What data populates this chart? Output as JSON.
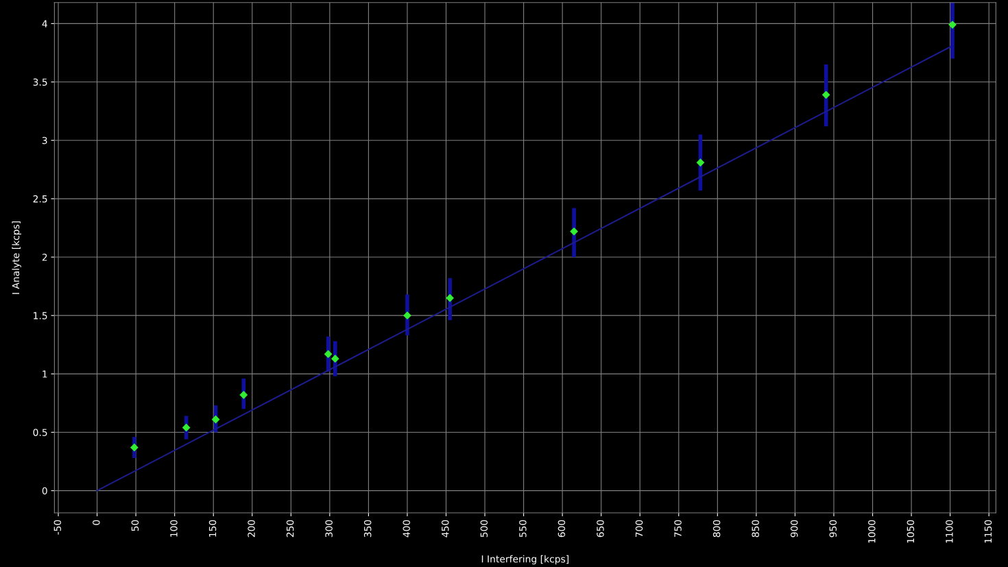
{
  "chart_data": {
    "type": "scatter",
    "xlabel": "I Interfering [kcps]",
    "ylabel": "I Analyte [kcps]",
    "xlim": [
      -55,
      1159
    ],
    "ylim": [
      -0.19,
      4.18
    ],
    "xticks": [
      -50,
      0,
      50,
      100,
      150,
      200,
      250,
      300,
      350,
      400,
      450,
      500,
      550,
      600,
      650,
      700,
      750,
      800,
      850,
      900,
      950,
      1000,
      1050,
      1100,
      1150
    ],
    "yticks": [
      0,
      0.5,
      1,
      1.5,
      2,
      2.5,
      3,
      3.5,
      4
    ],
    "grid": true,
    "marker": "diamond",
    "series": [
      {
        "color": "#33ee33",
        "x": [
          48,
          115,
          153,
          189,
          298,
          307,
          400,
          455,
          615,
          778,
          940,
          1103
        ],
        "values": [
          0.37,
          0.54,
          0.61,
          0.82,
          1.17,
          1.13,
          1.5,
          1.65,
          2.22,
          2.81,
          3.39,
          3.99
        ],
        "errors": [
          [
            0.28,
            0.46
          ],
          [
            0.44,
            0.64
          ],
          [
            0.5,
            0.73
          ],
          [
            0.7,
            0.96
          ],
          [
            1.02,
            1.32
          ],
          [
            0.98,
            1.28
          ],
          [
            1.33,
            1.68
          ],
          [
            1.46,
            1.82
          ],
          [
            2.0,
            2.42
          ],
          [
            2.57,
            3.05
          ],
          [
            3.12,
            3.65
          ],
          [
            3.7,
            4.18
          ]
        ]
      },
      {
        "type": "line",
        "color": "#1c1c8c",
        "x": [
          0,
          1100
        ],
        "values": [
          0,
          3.8
        ],
        "marker": "none",
        "line_style": "solid"
      }
    ]
  }
}
